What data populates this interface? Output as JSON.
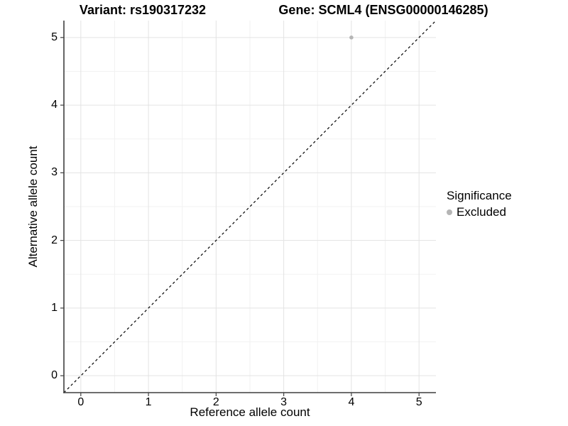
{
  "titles": {
    "left": "Variant: rs190317232",
    "right": "Gene: SCML4 (ENSG00000146285)"
  },
  "chart_data": {
    "type": "scatter",
    "xlabel": "Reference allele count",
    "ylabel": "Alternative allele count",
    "xlim": [
      -0.25,
      5.25
    ],
    "ylim": [
      -0.25,
      5.25
    ],
    "xticks": [
      0,
      1,
      2,
      3,
      4,
      5
    ],
    "yticks": [
      0,
      1,
      2,
      3,
      4,
      5
    ],
    "grid": true,
    "minor_grid": true,
    "points": [
      {
        "x": 4,
        "y": 5,
        "series": "Excluded"
      }
    ],
    "reference_line": {
      "kind": "diagonal-identity",
      "slope": 1,
      "intercept": 0,
      "style": "dashed"
    },
    "legend": {
      "position": "right",
      "title": "Significance",
      "entries": [
        {
          "label": "Excluded",
          "marker": "circle",
          "color": "#b5b5b5"
        }
      ]
    },
    "colors": {
      "background": "#ffffff",
      "point": "#b5b5b5",
      "grid_major": "#e3e3e3",
      "grid_minor": "#f2f2f2",
      "axis_line": "#3f3f3f",
      "tick_mark": "#3f3f3f",
      "reference_line": "#000000",
      "text": "#000000"
    }
  }
}
